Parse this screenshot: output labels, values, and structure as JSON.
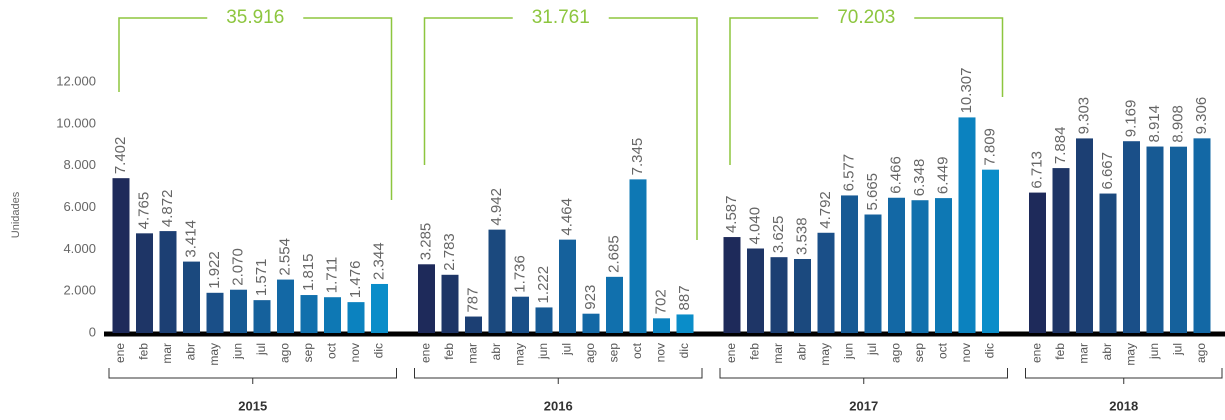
{
  "chart_data": {
    "type": "bar",
    "y_label": "Unidades",
    "ylim": [
      0,
      12000
    ],
    "yticks": [
      0,
      {
        "value": 2000,
        "label": "2.000"
      },
      {
        "value": 4000,
        "label": "4.000"
      },
      {
        "value": 6000,
        "label": "6.000"
      },
      {
        "value": 8000,
        "label": "8.000"
      },
      {
        "value": 10000,
        "label": "10.000"
      },
      {
        "value": 12000,
        "label": "12.000"
      }
    ],
    "colors": [
      "#1e2a5a",
      "#1e3566",
      "#1c3f73",
      "#1b497e",
      "#1a4f88",
      "#175a94",
      "#15619c",
      "#1368a5",
      "#1170ad",
      "#0e78b4",
      "#0b82bf",
      "#0a8dc9"
    ],
    "annotation_color": "#8dc63f",
    "annotations": [
      "35.916",
      "31.761",
      "70.203"
    ],
    "groups": [
      {
        "label": "2015",
        "categories": [
          "ene",
          "feb",
          "mar",
          "abr",
          "may",
          "jun",
          "jul",
          "ago",
          "sep",
          "oct",
          "nov",
          "dic"
        ],
        "values": [
          7402,
          4765,
          4872,
          3414,
          1922,
          2070,
          1571,
          2554,
          1815,
          1711,
          1476,
          2344
        ],
        "value_labels": [
          "7.402",
          "4.765",
          "4.872",
          "3.414",
          "1.922",
          "2.070",
          "1.571",
          "2.554",
          "1.815",
          "1.711",
          "1.476",
          "2.344"
        ]
      },
      {
        "label": "2016",
        "categories": [
          "ene",
          "feb",
          "mar",
          "abr",
          "may",
          "jun",
          "jul",
          "ago",
          "sep",
          "oct",
          "nov",
          "dic"
        ],
        "values": [
          3285,
          2783,
          787,
          4942,
          1736,
          1222,
          4464,
          923,
          2685,
          7345,
          702,
          887
        ],
        "value_labels": [
          "3.285",
          "2.783",
          "787",
          "4.942",
          "1.736",
          "1.222",
          "4.464",
          "923",
          "2.685",
          "7.345",
          "702",
          "887"
        ]
      },
      {
        "label": "2017",
        "categories": [
          "ene",
          "feb",
          "mar",
          "abr",
          "may",
          "jun",
          "jul",
          "ago",
          "sep",
          "oct",
          "nov",
          "dic"
        ],
        "values": [
          4587,
          4040,
          3625,
          3538,
          4792,
          6577,
          5665,
          6466,
          6348,
          6449,
          10307,
          7809
        ],
        "value_labels": [
          "4.587",
          "4.040",
          "3.625",
          "3.538",
          "4.792",
          "6.577",
          "5.665",
          "6.466",
          "6.348",
          "6.449",
          "10.307",
          "7.809"
        ]
      },
      {
        "label": "2018",
        "categories": [
          "ene",
          "feb",
          "mar",
          "abr",
          "may",
          "jun",
          "jul",
          "ago"
        ],
        "values": [
          6713,
          7884,
          9303,
          6667,
          9169,
          8914,
          8908,
          9306
        ],
        "value_labels": [
          "6.713",
          "7.884",
          "9.303",
          "6.667",
          "9.169",
          "8.914",
          "8.908",
          "9.306"
        ]
      }
    ]
  }
}
